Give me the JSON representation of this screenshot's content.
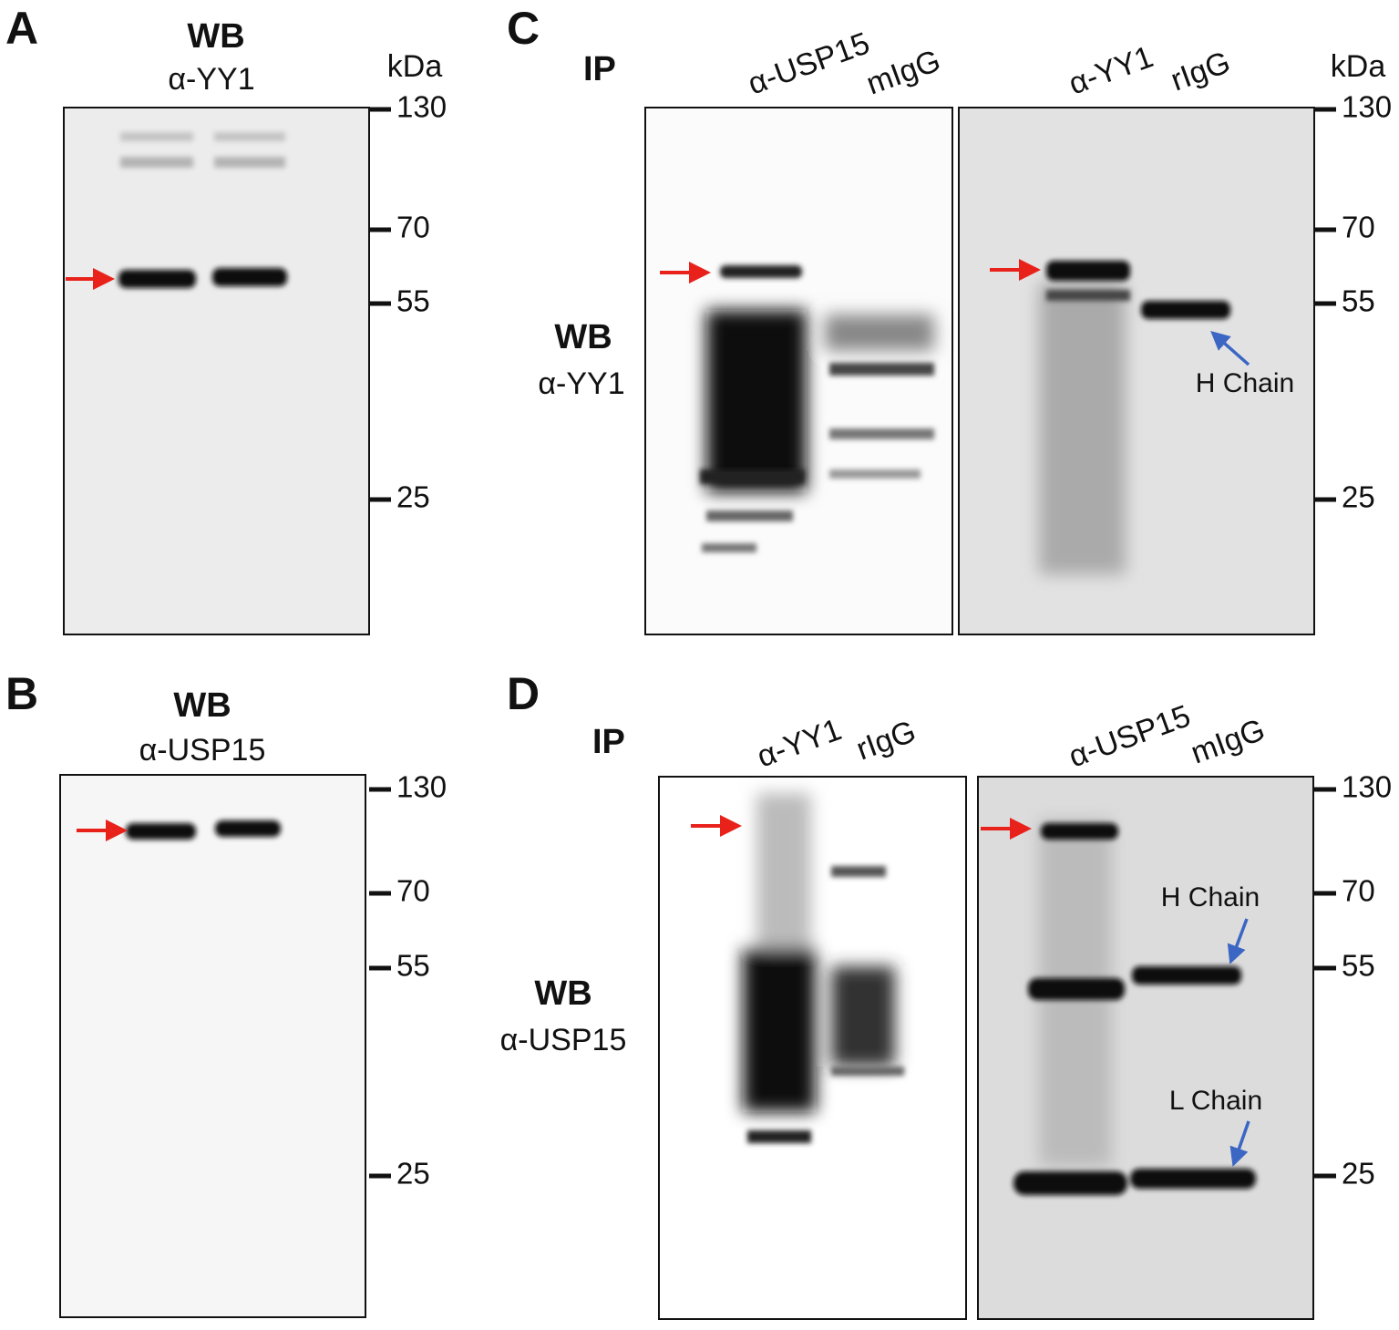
{
  "panels": [
    {
      "label": "A",
      "title": "WB",
      "subtitle": "α-YY1",
      "unit": "kDa",
      "markers": [
        130,
        70,
        55,
        25
      ]
    },
    {
      "label": "B",
      "title": "WB",
      "subtitle": "α-USP15",
      "markers": [
        130,
        70,
        55,
        25
      ]
    },
    {
      "label": "C",
      "ip": "IP",
      "wb": "WB",
      "wb_antibody": "α-YY1",
      "lanes_left": [
        "α-USP15",
        "mIgG"
      ],
      "lanes_right": [
        "α-YY1",
        "rIgG"
      ],
      "unit": "kDa",
      "markers": [
        130,
        70,
        55,
        25
      ],
      "annotations": [
        "H Chain"
      ]
    },
    {
      "label": "D",
      "ip": "IP",
      "wb": "WB",
      "wb_antibody": "α-USP15",
      "lanes_left": [
        "α-YY1",
        "rIgG"
      ],
      "lanes_right": [
        "α-USP15",
        "mIgG"
      ],
      "markers": [
        130,
        70,
        55,
        25
      ],
      "annotations": [
        "H Chain",
        "L Chain"
      ]
    }
  ]
}
